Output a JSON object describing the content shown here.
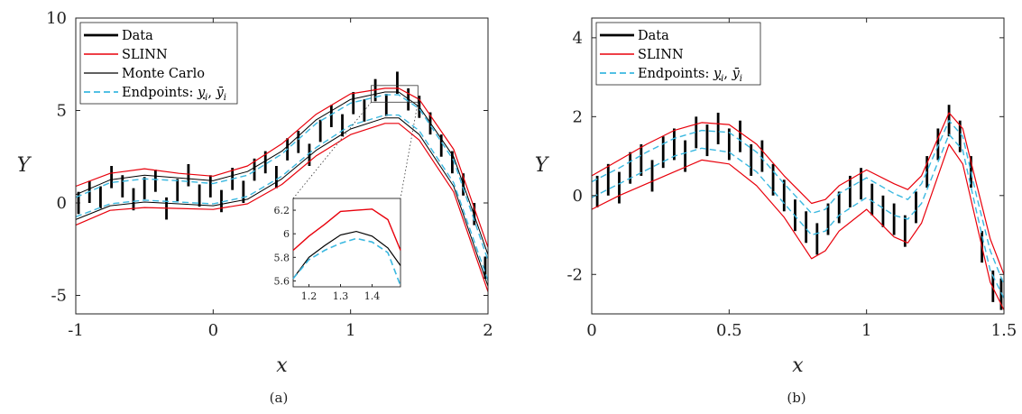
{
  "chart_data": [
    {
      "type": "line",
      "caption": "(a)",
      "xlabel": "x",
      "ylabel": "Y",
      "xlim": [
        -1,
        2
      ],
      "ylim": [
        -6,
        10
      ],
      "xticks": [
        "-1",
        "0",
        "1",
        "2"
      ],
      "yticks": [
        "-5",
        "0",
        "5",
        "10"
      ],
      "legend": [
        "Data",
        "SLINN",
        "Monte Carlo",
        "Endpoints: y_i, ȳ_i"
      ],
      "legend_placement": "top-left",
      "x": [
        -1.0,
        -0.75,
        -0.5,
        -0.25,
        0.0,
        0.25,
        0.5,
        0.75,
        1.0,
        1.25,
        1.35,
        1.5,
        1.75,
        2.0
      ],
      "series": [
        {
          "name": "SLINN",
          "role": "upper",
          "values": [
            0.9,
            1.6,
            1.85,
            1.6,
            1.45,
            2.0,
            3.2,
            4.8,
            5.9,
            6.2,
            6.2,
            5.6,
            2.9,
            -2.4
          ]
        },
        {
          "name": "Monte Carlo",
          "role": "upper",
          "values": [
            0.45,
            1.25,
            1.5,
            1.35,
            1.2,
            1.7,
            2.8,
            4.5,
            5.6,
            6.0,
            6.0,
            5.2,
            2.5,
            -2.8
          ]
        },
        {
          "name": "Endpoints: y_i, ȳ_i",
          "role": "upper",
          "values": [
            0.3,
            1.1,
            1.3,
            1.2,
            1.05,
            1.5,
            2.65,
            4.3,
            5.4,
            5.85,
            5.85,
            5.1,
            2.3,
            -3.1
          ]
        },
        {
          "name": "Endpoints: y_i, ȳ_i",
          "role": "lower",
          "values": [
            -0.75,
            -0.05,
            0.15,
            0.05,
            -0.05,
            0.35,
            1.45,
            3.0,
            4.2,
            4.75,
            4.75,
            3.9,
            1.1,
            -4.2
          ]
        },
        {
          "name": "Monte Carlo",
          "role": "lower",
          "values": [
            -0.9,
            -0.15,
            0.05,
            -0.05,
            -0.15,
            0.2,
            1.3,
            2.85,
            4.0,
            4.6,
            4.6,
            3.7,
            0.9,
            -4.5
          ]
        },
        {
          "name": "SLINN",
          "role": "lower",
          "values": [
            -1.2,
            -0.4,
            -0.25,
            -0.3,
            -0.35,
            -0.05,
            1.0,
            2.55,
            3.7,
            4.3,
            4.3,
            3.4,
            0.6,
            -4.8
          ]
        }
      ],
      "data_points": {
        "x": [
          -0.98,
          -0.9,
          -0.82,
          -0.74,
          -0.66,
          -0.58,
          -0.5,
          -0.42,
          -0.34,
          -0.26,
          -0.18,
          -0.1,
          -0.02,
          0.06,
          0.14,
          0.22,
          0.3,
          0.38,
          0.46,
          0.54,
          0.62,
          0.7,
          0.78,
          0.86,
          0.94,
          1.02,
          1.1,
          1.18,
          1.26,
          1.34,
          1.42,
          1.5,
          1.58,
          1.66,
          1.74,
          1.82,
          1.9,
          1.98
        ],
        "y": [
          0.0,
          0.6,
          0.3,
          1.4,
          0.9,
          0.2,
          0.8,
          1.2,
          -0.3,
          0.7,
          1.5,
          0.4,
          0.9,
          0.1,
          1.3,
          0.6,
          1.8,
          2.2,
          1.4,
          2.9,
          3.3,
          2.6,
          3.9,
          4.7,
          4.2,
          5.4,
          5.0,
          6.1,
          5.3,
          6.5,
          5.6,
          5.2,
          4.3,
          3.1,
          2.2,
          1.0,
          -0.6,
          -3.5
        ],
        "bar_halfwidth": 0.6
      },
      "inset": {
        "xlim": [
          1.15,
          1.49
        ],
        "ylim": [
          5.55,
          6.3
        ],
        "xticks": [
          "1.2",
          "1.3",
          "1.4"
        ],
        "yticks": [
          "5.6",
          "5.8",
          "6",
          "6.2"
        ],
        "x": [
          1.15,
          1.2,
          1.25,
          1.3,
          1.35,
          1.4,
          1.45,
          1.49
        ],
        "series": [
          {
            "name": "SLINN",
            "values": [
              5.86,
              5.98,
              6.08,
              6.19,
              6.2,
              6.21,
              6.12,
              5.86
            ]
          },
          {
            "name": "Monte Carlo",
            "values": [
              5.62,
              5.8,
              5.9,
              5.99,
              6.02,
              5.98,
              5.88,
              5.73
            ]
          },
          {
            "name": "Endpoints: y_i, ȳ_i",
            "values": [
              5.62,
              5.78,
              5.86,
              5.92,
              5.96,
              5.93,
              5.84,
              5.56
            ]
          }
        ]
      }
    },
    {
      "type": "line",
      "caption": "(b)",
      "xlabel": "x",
      "ylabel": "Y",
      "xlim": [
        0,
        1.5
      ],
      "ylim": [
        -3,
        4.5
      ],
      "xticks": [
        "0",
        "0.5",
        "1",
        "1.5"
      ],
      "yticks": [
        "-2",
        "0",
        "2",
        "4"
      ],
      "legend": [
        "Data",
        "SLINN",
        "Endpoints: y_i, ȳ_i"
      ],
      "legend_placement": "top-left",
      "x": [
        0.0,
        0.1,
        0.2,
        0.3,
        0.4,
        0.5,
        0.6,
        0.7,
        0.8,
        0.85,
        0.9,
        1.0,
        1.1,
        1.15,
        1.2,
        1.3,
        1.35,
        1.4,
        1.45,
        1.5
      ],
      "series": [
        {
          "name": "SLINN",
          "role": "upper",
          "values": [
            0.5,
            0.9,
            1.3,
            1.65,
            1.85,
            1.8,
            1.3,
            0.5,
            -0.2,
            -0.1,
            0.25,
            0.65,
            0.3,
            0.15,
            0.5,
            2.1,
            1.7,
            0.3,
            -1.1,
            -2.0
          ]
        },
        {
          "name": "Endpoints: y_i, ȳ_i",
          "role": "upper",
          "values": [
            0.35,
            0.7,
            1.1,
            1.45,
            1.65,
            1.6,
            1.1,
            0.3,
            -0.45,
            -0.35,
            0.05,
            0.45,
            0.05,
            -0.1,
            0.3,
            1.9,
            1.5,
            0.0,
            -1.4,
            -2.25
          ]
        },
        {
          "name": "Endpoints: y_i, ȳ_i",
          "role": "lower",
          "values": [
            -0.05,
            0.3,
            0.65,
            1.0,
            1.2,
            1.1,
            0.6,
            -0.2,
            -1.0,
            -0.9,
            -0.5,
            -0.05,
            -0.5,
            -0.6,
            -0.2,
            1.55,
            1.15,
            -0.4,
            -1.9,
            -2.6
          ]
        },
        {
          "name": "SLINN",
          "role": "lower",
          "values": [
            -0.35,
            0.0,
            0.3,
            0.6,
            0.9,
            0.8,
            0.25,
            -0.55,
            -1.6,
            -1.4,
            -0.9,
            -0.35,
            -1.05,
            -1.2,
            -0.7,
            1.3,
            0.8,
            -0.7,
            -2.2,
            -2.9
          ]
        }
      ],
      "data_points": {
        "x": [
          0.02,
          0.06,
          0.1,
          0.14,
          0.18,
          0.22,
          0.26,
          0.3,
          0.34,
          0.38,
          0.42,
          0.46,
          0.5,
          0.54,
          0.58,
          0.62,
          0.66,
          0.7,
          0.74,
          0.78,
          0.82,
          0.86,
          0.9,
          0.94,
          0.98,
          1.02,
          1.06,
          1.1,
          1.14,
          1.18,
          1.22,
          1.26,
          1.3,
          1.34,
          1.38,
          1.42,
          1.46,
          1.49
        ],
        "y": [
          0.1,
          0.4,
          0.2,
          0.7,
          0.9,
          0.5,
          1.1,
          1.3,
          1.0,
          1.6,
          1.4,
          1.7,
          1.3,
          1.5,
          0.9,
          1.0,
          0.4,
          0.0,
          -0.5,
          -0.8,
          -1.1,
          -0.6,
          -0.3,
          0.1,
          0.3,
          -0.1,
          -0.4,
          -0.6,
          -0.9,
          -0.3,
          0.6,
          1.3,
          1.9,
          1.5,
          0.6,
          -1.3,
          -2.3,
          -2.5
        ],
        "bar_halfwidth": 0.4
      }
    }
  ]
}
